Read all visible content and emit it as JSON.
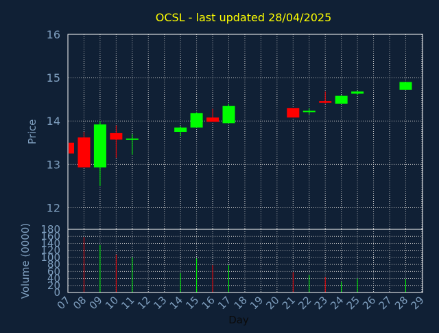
{
  "title": "OCSL - last updated 28/04/2025",
  "colors": {
    "background": "#102035",
    "title": "#ffff00",
    "axis_text": "#7f9fbf",
    "grid": "#c8c8c8",
    "frame": "#ffffff",
    "up": "#00ff00",
    "down": "#ff0000"
  },
  "chart_data": [
    {
      "type": "candlestick",
      "ylabel": "Price",
      "ylim": [
        11.5,
        16
      ],
      "yticks": [
        "12",
        "13",
        "14",
        "15",
        "16"
      ],
      "grid": true,
      "candles": [
        {
          "day": "07",
          "open": 13.5,
          "high": 13.5,
          "low": 13.25,
          "close": 13.25
        },
        {
          "day": "08",
          "open": 13.62,
          "high": 13.75,
          "low": 12.93,
          "close": 12.93
        },
        {
          "day": "09",
          "open": 12.93,
          "high": 14.0,
          "low": 12.5,
          "close": 13.92
        },
        {
          "day": "10",
          "open": 13.72,
          "high": 13.9,
          "low": 13.15,
          "close": 13.57
        },
        {
          "day": "11",
          "open": 13.57,
          "high": 13.7,
          "low": 13.22,
          "close": 13.58
        },
        {
          "day": "14",
          "open": 13.75,
          "high": 13.88,
          "low": 13.65,
          "close": 13.85
        },
        {
          "day": "15",
          "open": 13.85,
          "high": 14.2,
          "low": 13.85,
          "close": 14.18
        },
        {
          "day": "16",
          "open": 14.08,
          "high": 14.28,
          "low": 13.98,
          "close": 13.98
        },
        {
          "day": "17",
          "open": 13.95,
          "high": 14.4,
          "low": 13.95,
          "close": 14.35
        },
        {
          "day": "21",
          "open": 14.3,
          "high": 14.3,
          "low": 14.08,
          "close": 14.08
        },
        {
          "day": "22",
          "open": 14.2,
          "high": 14.3,
          "low": 14.15,
          "close": 14.22
        },
        {
          "day": "23",
          "open": 14.46,
          "high": 14.68,
          "low": 14.4,
          "close": 14.42
        },
        {
          "day": "24",
          "open": 14.4,
          "high": 14.6,
          "low": 14.4,
          "close": 14.58
        },
        {
          "day": "25",
          "open": 14.63,
          "high": 14.7,
          "low": 14.6,
          "close": 14.68
        },
        {
          "day": "28",
          "open": 14.72,
          "high": 14.9,
          "low": 14.72,
          "close": 14.9
        }
      ]
    },
    {
      "type": "bar",
      "ylabel": "Volume (0000)",
      "xlabel": "Day",
      "ylim": [
        0,
        180
      ],
      "yticks": [
        "0",
        "20",
        "40",
        "60",
        "80",
        "100",
        "120",
        "140",
        "160",
        "180"
      ],
      "categories": [
        "07",
        "08",
        "09",
        "10",
        "11",
        "12",
        "13",
        "14",
        "15",
        "16",
        "17",
        "18",
        "19",
        "20",
        "21",
        "22",
        "23",
        "24",
        "25",
        "26",
        "27",
        "28",
        "29"
      ],
      "volumes": [
        {
          "day": "08",
          "value": 158,
          "dir": "down"
        },
        {
          "day": "09",
          "value": 135,
          "dir": "up"
        },
        {
          "day": "10",
          "value": 108,
          "dir": "down"
        },
        {
          "day": "11",
          "value": 100,
          "dir": "up"
        },
        {
          "day": "14",
          "value": 55,
          "dir": "up"
        },
        {
          "day": "15",
          "value": 97,
          "dir": "up"
        },
        {
          "day": "16",
          "value": 78,
          "dir": "down"
        },
        {
          "day": "17",
          "value": 78,
          "dir": "up"
        },
        {
          "day": "21",
          "value": 58,
          "dir": "down"
        },
        {
          "day": "22",
          "value": 50,
          "dir": "up"
        },
        {
          "day": "23",
          "value": 44,
          "dir": "down"
        },
        {
          "day": "24",
          "value": 30,
          "dir": "up"
        },
        {
          "day": "25",
          "value": 40,
          "dir": "up"
        },
        {
          "day": "28",
          "value": 38,
          "dir": "up"
        }
      ]
    }
  ]
}
